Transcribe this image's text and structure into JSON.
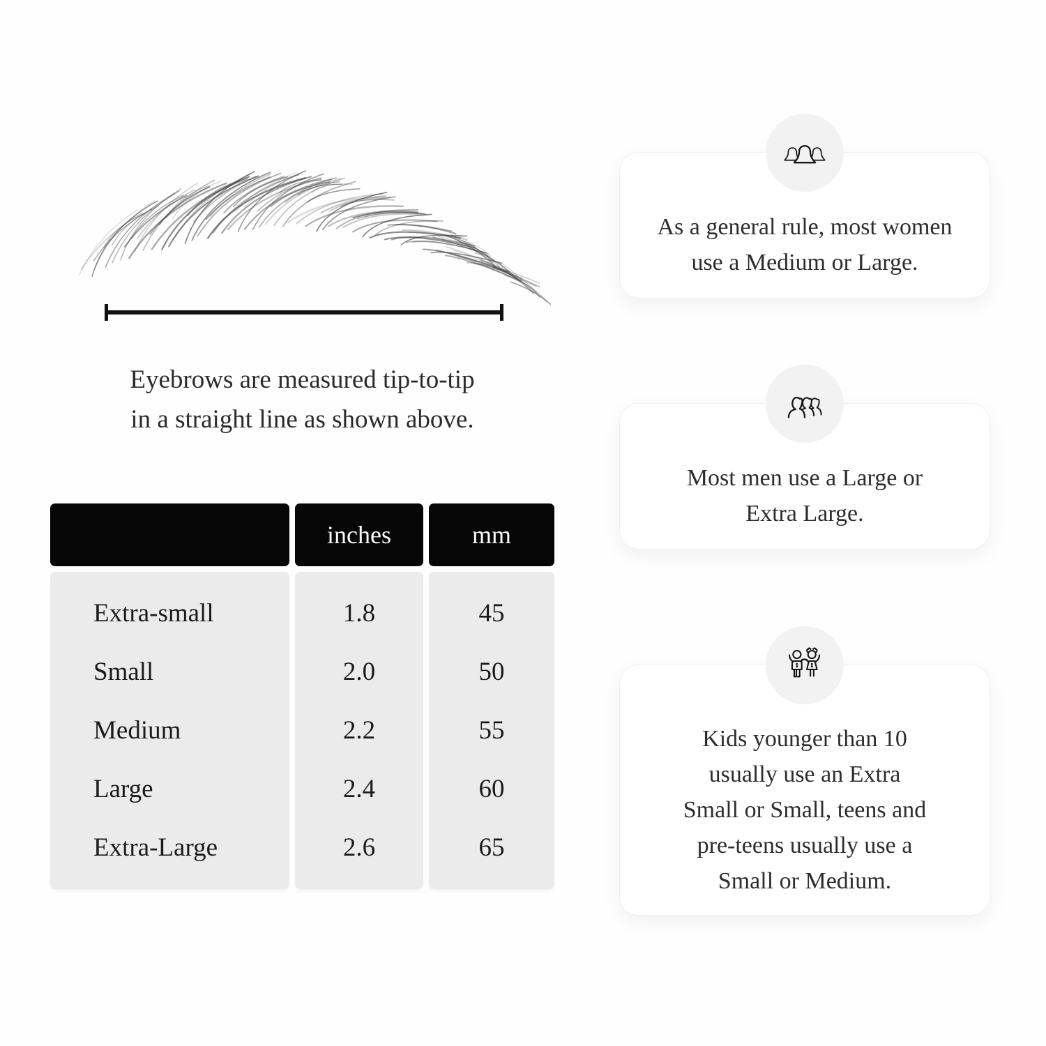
{
  "illustration": {
    "caption_lines": [
      "Eyebrows are measured tip-to-tip",
      "in a straight line as shown above."
    ]
  },
  "size_table": {
    "headers": {
      "size": "",
      "inches": "inches",
      "mm": "mm"
    },
    "rows": [
      {
        "size": "Extra-small",
        "inches": "1.8",
        "mm": "45"
      },
      {
        "size": "Small",
        "inches": "2.0",
        "mm": "50"
      },
      {
        "size": "Medium",
        "inches": "2.2",
        "mm": "55"
      },
      {
        "size": "Large",
        "inches": "2.4",
        "mm": "60"
      },
      {
        "size": "Extra-Large",
        "inches": "2.6",
        "mm": "65"
      }
    ]
  },
  "cards": [
    {
      "icon": "women-group-icon",
      "lines": [
        "As a general rule, most women",
        "use a Medium or Large."
      ]
    },
    {
      "icon": "men-group-icon",
      "lines": [
        "Most men use a Large or",
        "Extra Large."
      ]
    },
    {
      "icon": "kids-icon",
      "lines": [
        "Kids younger than 10",
        "usually use an Extra",
        "Small or Small, teens and",
        "pre-teens usually use a",
        "Small or Medium."
      ]
    }
  ],
  "colors": {
    "header_bg": "#060606",
    "header_text": "#fafafa",
    "table_body_bg": "#ebebeb",
    "badge_bg": "#f2f2f2",
    "card_bg": "#ffffff",
    "text": "#2d2d2d"
  }
}
